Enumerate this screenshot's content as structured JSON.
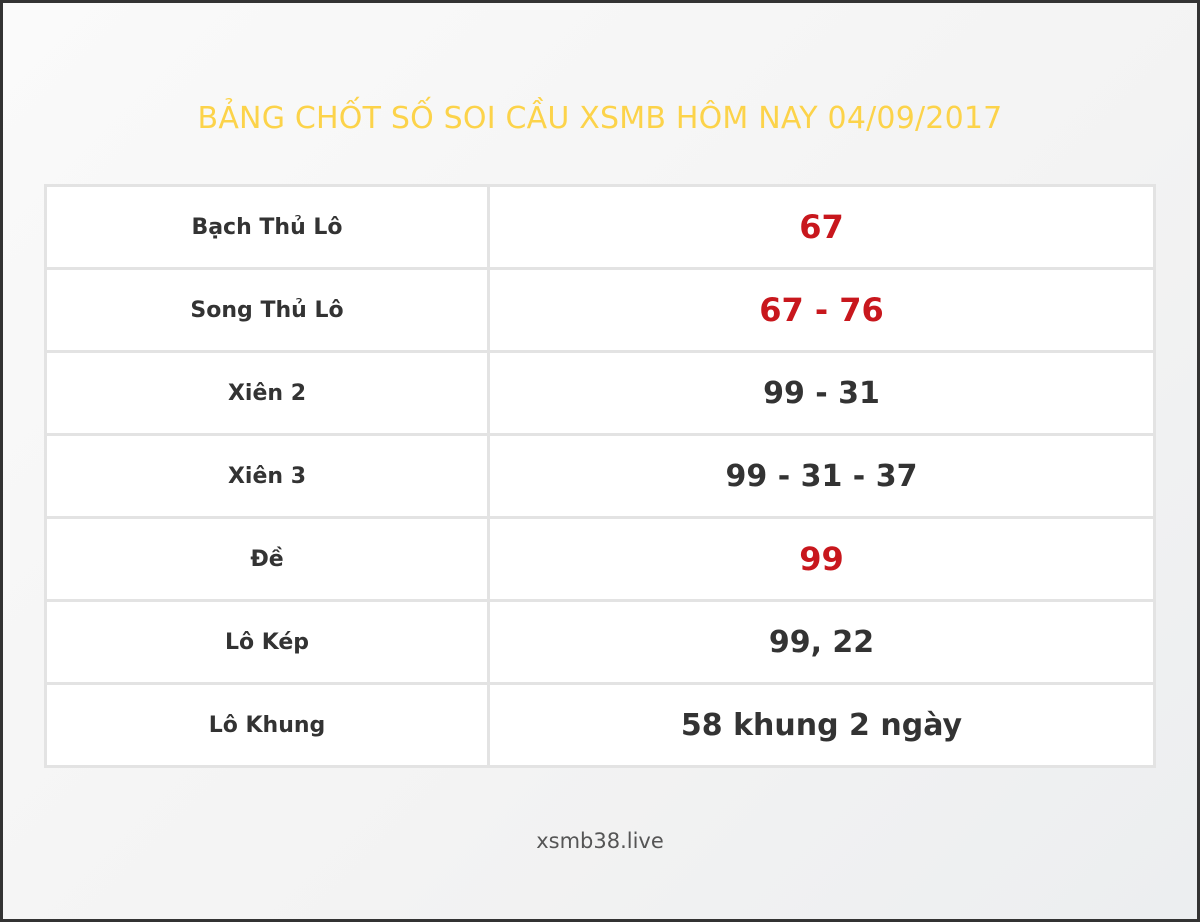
{
  "title": "BẢNG CHỐT SỐ SOI CẦU XSMB HÔM NAY 04/09/2017",
  "accent_color": "#fcd34a",
  "highlight_color": "#c8171d",
  "rows": [
    {
      "label": "Bạch Thủ Lô",
      "value": "67",
      "highlight": true
    },
    {
      "label": "Song Thủ Lô",
      "value": "67 - 76",
      "highlight": true
    },
    {
      "label": "Xiên 2",
      "value": "99 - 31",
      "highlight": false
    },
    {
      "label": "Xiên 3",
      "value": "99 - 31 - 37",
      "highlight": false
    },
    {
      "label": "Đề",
      "value": "99",
      "highlight": true
    },
    {
      "label": "Lô Kép",
      "value": "99, 22",
      "highlight": false
    },
    {
      "label": "Lô Khung",
      "value": "58 khung 2 ngày",
      "highlight": false
    }
  ],
  "footer": "xsmb38.live"
}
